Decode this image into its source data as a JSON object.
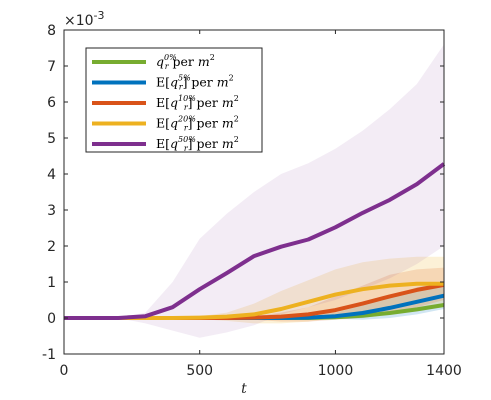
{
  "chart_data": {
    "type": "line",
    "xlabel": "t",
    "ylabel": "",
    "xlim": [
      0,
      1400
    ],
    "ylim": [
      -1,
      8
    ],
    "y_multiplier_label": "×10",
    "y_multiplier_exponent": "-3",
    "xticks": [
      "0",
      "500",
      "1000",
      "1400"
    ],
    "xtick_values": [
      0,
      500,
      1000,
      1400
    ],
    "yticks": [
      "-1",
      "0",
      "1",
      "2",
      "3",
      "4",
      "5",
      "6",
      "7",
      "8"
    ],
    "ytick_values": [
      -1,
      0,
      1,
      2,
      3,
      4,
      5,
      6,
      7,
      8
    ],
    "grid": false,
    "legend_position": "top-left",
    "x": [
      0,
      100,
      200,
      300,
      400,
      500,
      600,
      700,
      800,
      900,
      1000,
      1100,
      1200,
      1300,
      1400
    ],
    "series": [
      {
        "name_parts": {
          "pre": "",
          "base": "q",
          "sub": "r",
          "sup": "0%",
          "post": " per ",
          "unit": "m",
          "unit_sup": "2",
          "close": ""
        },
        "color": "#77AC30",
        "values": [
          0,
          0,
          0,
          0,
          0,
          0,
          0,
          0,
          0,
          0,
          0.02,
          0.06,
          0.14,
          0.24,
          0.36
        ],
        "band_upper": [
          0,
          0,
          0,
          0,
          0,
          0,
          0,
          0,
          0,
          0,
          0.02,
          0.06,
          0.14,
          0.24,
          0.36
        ],
        "band_lower": [
          0,
          0,
          0,
          0,
          0,
          0,
          0,
          0,
          0,
          0,
          0.02,
          0.06,
          0.14,
          0.24,
          0.36
        ]
      },
      {
        "name_parts": {
          "pre": "E[",
          "base": "q",
          "sub": "r",
          "sup": "5%",
          "post": "] per ",
          "unit": "m",
          "unit_sup": "2",
          "close": ""
        },
        "color": "#0072BD",
        "values": [
          0,
          0,
          0,
          0,
          0,
          0,
          0,
          0,
          0,
          0.01,
          0.05,
          0.14,
          0.28,
          0.45,
          0.62
        ],
        "band_upper": [
          0,
          0,
          0,
          0,
          0,
          0,
          0,
          0,
          0.02,
          0.05,
          0.15,
          0.35,
          0.6,
          0.85,
          1.0
        ],
        "band_lower": [
          0,
          0,
          0,
          0,
          0,
          0,
          0,
          0,
          0,
          0,
          -0.02,
          -0.05,
          0,
          0.1,
          0.25
        ]
      },
      {
        "name_parts": {
          "pre": "E[",
          "base": "q",
          "sub": "r",
          "sup": "10%",
          "post": "] per ",
          "unit": "m",
          "unit_sup": "2",
          "close": ""
        },
        "color": "#D95319",
        "values": [
          0,
          0,
          0,
          0,
          0,
          0,
          0,
          0.01,
          0.04,
          0.1,
          0.22,
          0.4,
          0.6,
          0.78,
          0.92
        ],
        "band_upper": [
          0,
          0,
          0,
          0,
          0,
          0,
          0,
          0.05,
          0.15,
          0.3,
          0.6,
          0.9,
          1.2,
          1.35,
          1.4
        ],
        "band_lower": [
          0,
          0,
          0,
          0,
          0,
          0,
          0,
          -0.05,
          -0.1,
          -0.1,
          -0.05,
          0,
          0.1,
          0.3,
          0.5
        ]
      },
      {
        "name_parts": {
          "pre": "E[",
          "base": "q",
          "sub": "r",
          "sup": "20%",
          "post": "] per ",
          "unit": "m",
          "unit_sup": "2",
          "close": ""
        },
        "color": "#EDB120",
        "values": [
          0,
          0,
          0,
          0,
          0,
          0.01,
          0.04,
          0.1,
          0.25,
          0.45,
          0.65,
          0.8,
          0.9,
          0.95,
          0.95
        ],
        "band_upper": [
          0,
          0,
          0,
          0,
          0,
          0.05,
          0.15,
          0.4,
          0.75,
          1.05,
          1.35,
          1.55,
          1.65,
          1.7,
          1.7
        ],
        "band_lower": [
          0,
          0,
          0,
          0,
          0,
          -0.03,
          -0.08,
          -0.15,
          -0.15,
          -0.1,
          0,
          0.1,
          0.2,
          0.25,
          0.3
        ]
      },
      {
        "name_parts": {
          "pre": "E[",
          "base": "q",
          "sub": "r",
          "sup": "50%",
          "post": "] per ",
          "unit": "m",
          "unit_sup": "2",
          "close": ""
        },
        "color": "#7E2F8E",
        "values": [
          0,
          0,
          0,
          0.05,
          0.3,
          0.8,
          1.25,
          1.72,
          1.98,
          2.18,
          2.52,
          2.92,
          3.28,
          3.72,
          4.28
        ],
        "band_upper": [
          0,
          0,
          0,
          0.15,
          1.0,
          2.2,
          2.9,
          3.5,
          4.0,
          4.3,
          4.7,
          5.2,
          5.8,
          6.5,
          7.6
        ],
        "band_lower": [
          0,
          0,
          0,
          -0.15,
          -0.35,
          -0.55,
          -0.4,
          -0.2,
          0.1,
          0.3,
          0.5,
          0.8,
          1.1,
          1.5,
          2.0
        ]
      }
    ]
  }
}
